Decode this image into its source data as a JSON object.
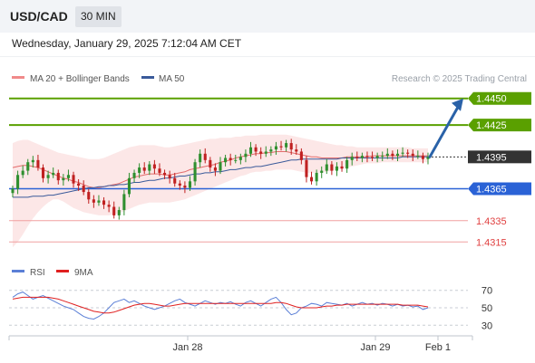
{
  "header": {
    "pair": "USD/CAD",
    "timeframe": "30 MIN"
  },
  "datetime": "Wednesday, January 29, 2025 7:12:04 AM CET",
  "legend": [
    {
      "label": "MA 20 + Bollinger Bands",
      "color": "#f08a8a"
    },
    {
      "label": "MA 50",
      "color": "#3a5a9a"
    }
  ],
  "copyright": "Research © 2025 Trading Central",
  "rsi_legend": [
    {
      "label": "RSI",
      "color": "#5b7fd6"
    },
    {
      "label": "9MA",
      "color": "#e02020"
    }
  ],
  "colors": {
    "resistance": "#5aa000",
    "pivot": "#2a62d6",
    "support": "#e04040",
    "last_price": "#333333",
    "arrow": "#2a62a8",
    "candle_up": "#2f8f2f",
    "candle_down": "#c02020",
    "bb_fill": "#fbe3e3"
  },
  "chart_data": {
    "type": "candlestick",
    "ylim": [
      1.4305,
      1.446
    ],
    "x_ticks": [
      "Jan 28",
      "Jan 29",
      "Feb 1"
    ],
    "levels": [
      {
        "label": "1.4450",
        "value": 1.445,
        "kind": "resistance"
      },
      {
        "label": "1.4425",
        "value": 1.4425,
        "kind": "resistance"
      },
      {
        "label": "1.4395",
        "value": 1.4395,
        "kind": "last"
      },
      {
        "label": "1.4365",
        "value": 1.4365,
        "kind": "pivot"
      },
      {
        "label": "1.4335",
        "value": 1.4335,
        "kind": "support"
      },
      {
        "label": "1.4315",
        "value": 1.4315,
        "kind": "support"
      }
    ],
    "closes": [
      1.4365,
      1.4378,
      1.4382,
      1.439,
      1.4392,
      1.4385,
      1.4375,
      1.4378,
      1.438,
      1.4373,
      1.4375,
      1.4378,
      1.437,
      1.4368,
      1.4362,
      1.4355,
      1.4352,
      1.4354,
      1.435,
      1.4348,
      1.434,
      1.4345,
      1.436,
      1.4375,
      1.438,
      1.4385,
      1.4382,
      1.4388,
      1.4384,
      1.438,
      1.4378,
      1.4375,
      1.437,
      1.4368,
      1.4366,
      1.4372,
      1.439,
      1.4398,
      1.4392,
      1.4385,
      1.4382,
      1.439,
      1.4394,
      1.4392,
      1.4392,
      1.4395,
      1.4398,
      1.4404,
      1.44,
      1.4398,
      1.44,
      1.4402,
      1.4405,
      1.4404,
      1.4408,
      1.4402,
      1.44,
      1.4392,
      1.4376,
      1.4372,
      1.438,
      1.4382,
      1.4388,
      1.4382,
      1.4386,
      1.4384,
      1.4392,
      1.4395,
      1.4394,
      1.4396,
      1.4395,
      1.4394,
      1.4396,
      1.4396,
      1.4398,
      1.4396,
      1.4398,
      1.4399,
      1.4398,
      1.4396,
      1.4396,
      1.4393,
      1.4395
    ],
    "ma20": [
      1.4385,
      1.4386,
      1.4387,
      1.4387,
      1.4386,
      1.4385,
      1.4383,
      1.4381,
      1.4379,
      1.4377,
      1.4375,
      1.4374,
      1.4372,
      1.4371,
      1.4369,
      1.4367,
      1.4366,
      1.4366,
      1.4367,
      1.4368,
      1.4369,
      1.437,
      1.4372,
      1.4374,
      1.4376,
      1.4377,
      1.4378,
      1.4379,
      1.4379,
      1.4379,
      1.4378,
      1.4378,
      1.4379,
      1.438,
      1.4381,
      1.4383,
      1.4384,
      1.4385,
      1.4386,
      1.4387,
      1.4388,
      1.439,
      1.4391,
      1.4392,
      1.4394,
      1.4395,
      1.4396,
      1.4397,
      1.4398,
      1.4398,
      1.4399,
      1.4399,
      1.44,
      1.44,
      1.44,
      1.4399,
      1.4398,
      1.4397,
      1.4396,
      1.4395,
      1.4395,
      1.4394,
      1.4394,
      1.4394,
      1.4394,
      1.4394,
      1.4395,
      1.4395,
      1.4395,
      1.4395,
      1.4395,
      1.4396,
      1.4396,
      1.4396,
      1.4396,
      1.4396,
      1.4396,
      1.4396,
      1.4396,
      1.4396,
      1.4396,
      1.4396,
      1.4396
    ],
    "bb_upper": [
      1.4408,
      1.441,
      1.4411,
      1.4411,
      1.4409,
      1.4407,
      1.4405,
      1.4403,
      1.4401,
      1.4399,
      1.4398,
      1.4397,
      1.4396,
      1.4395,
      1.4394,
      1.4393,
      1.4393,
      1.4393,
      1.4394,
      1.4396,
      1.4398,
      1.44,
      1.4402,
      1.4404,
      1.4405,
      1.4406,
      1.4406,
      1.4406,
      1.4406,
      1.4405,
      1.4404,
      1.4404,
      1.4405,
      1.4406,
      1.4407,
      1.4408,
      1.4409,
      1.441,
      1.4411,
      1.4412,
      1.4412,
      1.4413,
      1.4413,
      1.4413,
      1.4414,
      1.4414,
      1.4415,
      1.4415,
      1.4415,
      1.4416,
      1.4416,
      1.4416,
      1.4416,
      1.4416,
      1.4416,
      1.4415,
      1.4414,
      1.4413,
      1.4412,
      1.4411,
      1.441,
      1.4409,
      1.4408,
      1.4407,
      1.4406,
      1.4406,
      1.4405,
      1.4405,
      1.4404,
      1.4404,
      1.4404,
      1.4404,
      1.4404,
      1.4404,
      1.4404,
      1.4404,
      1.4404,
      1.4404,
      1.4404,
      1.4403,
      1.4403,
      1.4403,
      1.4403
    ],
    "bb_lower": [
      1.431,
      1.4315,
      1.4322,
      1.433,
      1.4337,
      1.4343,
      1.4348,
      1.4352,
      1.4355,
      1.4355,
      1.4353,
      1.435,
      1.4347,
      1.4345,
      1.4343,
      1.4342,
      1.4341,
      1.434,
      1.434,
      1.434,
      1.4341,
      1.4342,
      1.4344,
      1.4346,
      1.4348,
      1.435,
      1.4351,
      1.4352,
      1.4352,
      1.4352,
      1.4352,
      1.4352,
      1.4353,
      1.4354,
      1.4355,
      1.4357,
      1.4359,
      1.4361,
      1.4363,
      1.4365,
      1.4367,
      1.4369,
      1.4371,
      1.4373,
      1.4375,
      1.4377,
      1.4378,
      1.438,
      1.4381,
      1.4381,
      1.4382,
      1.4382,
      1.4383,
      1.4383,
      1.4383,
      1.4383,
      1.4382,
      1.4381,
      1.438,
      1.438,
      1.438,
      1.438,
      1.4381,
      1.4382,
      1.4383,
      1.4384,
      1.4385,
      1.4386,
      1.4387,
      1.4388,
      1.4389,
      1.4389,
      1.4389,
      1.439,
      1.439,
      1.439,
      1.439,
      1.439,
      1.439,
      1.439,
      1.439,
      1.439,
      1.439
    ],
    "ma50": [
      1.4357,
      1.4357,
      1.4357,
      1.4357,
      1.4358,
      1.4358,
      1.4358,
      1.4359,
      1.4359,
      1.436,
      1.4361,
      1.4362,
      1.4363,
      1.4364,
      1.4365,
      1.4366,
      1.4366,
      1.4367,
      1.4367,
      1.4368,
      1.4368,
      1.4369,
      1.4369,
      1.437,
      1.4371,
      1.4371,
      1.4372,
      1.4373,
      1.4373,
      1.4374,
      1.4375,
      1.4375,
      1.4376,
      1.4377,
      1.4377,
      1.4378,
      1.4379,
      1.4379,
      1.438,
      1.438,
      1.4381,
      1.4381,
      1.4382,
      1.4383,
      1.4383,
      1.4384,
      1.4385,
      1.4385,
      1.4386,
      1.4386,
      1.4387,
      1.4388,
      1.4389,
      1.439,
      1.4391,
      1.4392,
      1.4392,
      1.4393,
      1.4393,
      1.4393,
      1.4393,
      1.4393,
      1.4393,
      1.4393,
      1.4393,
      1.4394,
      1.4394,
      1.4394,
      1.4394,
      1.4394,
      1.4394,
      1.4394,
      1.4394,
      1.4394,
      1.4394,
      1.4394,
      1.4394,
      1.4395,
      1.4395,
      1.4395,
      1.4395,
      1.4395,
      1.4395
    ],
    "forecast": {
      "from": 1.4395,
      "to": 1.445
    },
    "rsi": {
      "levels": [
        70,
        50,
        30
      ],
      "ylim": [
        22,
        78
      ],
      "rsi_values": [
        62,
        66,
        68,
        64,
        60,
        62,
        64,
        61,
        58,
        55,
        52,
        50,
        48,
        44,
        40,
        38,
        37,
        40,
        44,
        50,
        56,
        58,
        60,
        56,
        58,
        55,
        52,
        50,
        48,
        50,
        52,
        55,
        58,
        60,
        56,
        54,
        52,
        55,
        58,
        56,
        54,
        56,
        55,
        57,
        54,
        52,
        56,
        58,
        55,
        52,
        56,
        60,
        62,
        56,
        48,
        42,
        44,
        50,
        52,
        55,
        54,
        52,
        56,
        55,
        54,
        53,
        55,
        52,
        54,
        56,
        54,
        55,
        53,
        55,
        54,
        52,
        54,
        52,
        53,
        51,
        52,
        48,
        50
      ],
      "ma9_values": [
        60,
        61,
        62,
        62,
        62,
        62,
        62,
        62,
        61,
        60,
        58,
        56,
        54,
        52,
        50,
        48,
        46,
        45,
        44,
        44,
        45,
        47,
        49,
        51,
        53,
        54,
        55,
        55,
        54,
        53,
        52,
        52,
        53,
        54,
        55,
        55,
        55,
        55,
        55,
        55,
        55,
        55,
        55,
        55,
        55,
        55,
        55,
        55,
        55,
        55,
        55,
        55,
        56,
        56,
        55,
        53,
        51,
        50,
        50,
        50,
        50,
        51,
        52,
        52,
        53,
        53,
        54,
        54,
        54,
        54,
        54,
        54,
        54,
        54,
        54,
        54,
        54,
        53,
        53,
        53,
        53,
        52,
        51
      ]
    }
  }
}
